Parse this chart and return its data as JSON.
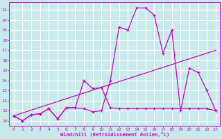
{
  "bg_color": "#c8eaea",
  "grid_color": "#ffffff",
  "line_color": "#cc00cc",
  "xlabel": "Windchill (Refroidissement éolien,°C)",
  "xlim": [
    -0.5,
    23.5
  ],
  "ylim": [
    9.5,
    21.8
  ],
  "xticks": [
    0,
    1,
    2,
    3,
    4,
    5,
    6,
    7,
    8,
    9,
    10,
    11,
    12,
    13,
    14,
    15,
    16,
    17,
    18,
    19,
    20,
    21,
    22,
    23
  ],
  "yticks": [
    10,
    11,
    12,
    13,
    14,
    15,
    16,
    17,
    18,
    19,
    20,
    21
  ],
  "line1_x": [
    0,
    1,
    2,
    3,
    4,
    5,
    6,
    7,
    8,
    9,
    10,
    11,
    12,
    13,
    14,
    15,
    16,
    17,
    18,
    19,
    20,
    21,
    22,
    23
  ],
  "line1_y": [
    10.5,
    10.0,
    10.6,
    10.7,
    11.2,
    10.2,
    11.3,
    11.3,
    14.0,
    13.2,
    13.3,
    11.3,
    11.2,
    11.2,
    11.2,
    11.2,
    11.2,
    11.2,
    11.2,
    11.2,
    11.2,
    11.2,
    11.2,
    11.0
  ],
  "line2_x": [
    0,
    1,
    2,
    3,
    4,
    5,
    6,
    7,
    8,
    9,
    10,
    11,
    12,
    13,
    14,
    15,
    16,
    17,
    18,
    19,
    20,
    21,
    22,
    23
  ],
  "line2_y": [
    10.5,
    10.0,
    10.6,
    10.7,
    11.2,
    10.2,
    11.3,
    11.3,
    11.2,
    10.9,
    11.0,
    14.0,
    19.3,
    19.0,
    21.2,
    21.2,
    20.5,
    16.7,
    19.0,
    11.0,
    15.2,
    14.8,
    13.0,
    11.0
  ],
  "line3_x": [
    0,
    23
  ],
  "line3_y": [
    10.5,
    17.0
  ]
}
